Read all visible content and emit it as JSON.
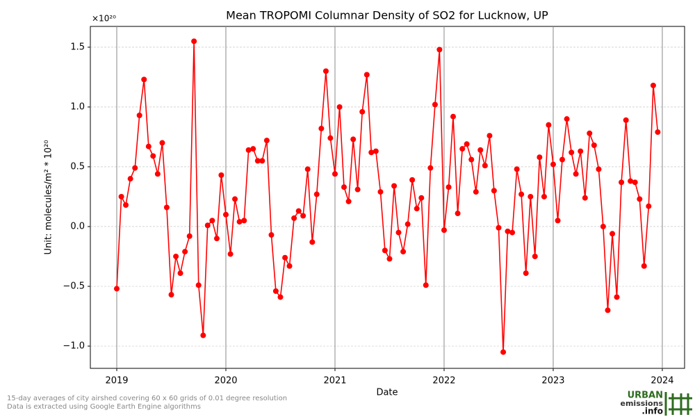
{
  "chart_data": {
    "type": "line",
    "title": "Mean TROPOMI Columnar Density of SO2 for Lucknow, UP",
    "x_label": "Date",
    "y_label": "Unit: molecules/m² * 10²⁰",
    "y_multiplier": "×10²⁰",
    "footnotes": [
      "15-day averages of city airshed covering 60 x 60 grids of 0.01 degree resolution",
      "Data is extracted using Google Earth Engine algorithms"
    ],
    "logo": [
      "URBAN",
      "emissions",
      ".info"
    ],
    "x": [
      2019,
      2019.042,
      2019.083,
      2019.125,
      2019.167,
      2019.208,
      2019.25,
      2019.292,
      2019.333,
      2019.375,
      2019.417,
      2019.458,
      2019.5,
      2019.542,
      2019.583,
      2019.625,
      2019.667,
      2019.708,
      2019.75,
      2019.792,
      2019.833,
      2019.875,
      2019.917,
      2019.958,
      2020,
      2020.042,
      2020.083,
      2020.125,
      2020.167,
      2020.208,
      2020.25,
      2020.292,
      2020.333,
      2020.375,
      2020.417,
      2020.458,
      2020.5,
      2020.542,
      2020.583,
      2020.625,
      2020.667,
      2020.708,
      2020.75,
      2020.792,
      2020.833,
      2020.875,
      2020.917,
      2020.958,
      2021,
      2021.042,
      2021.083,
      2021.125,
      2021.167,
      2021.208,
      2021.25,
      2021.292,
      2021.333,
      2021.375,
      2021.417,
      2021.458,
      2021.5,
      2021.542,
      2021.583,
      2021.625,
      2021.667,
      2021.708,
      2021.75,
      2021.792,
      2021.833,
      2021.875,
      2021.917,
      2021.958,
      2022,
      2022.042,
      2022.083,
      2022.125,
      2022.167,
      2022.208,
      2022.25,
      2022.292,
      2022.333,
      2022.375,
      2022.417,
      2022.458,
      2022.5,
      2022.542,
      2022.583,
      2022.625,
      2022.667,
      2022.708,
      2022.75,
      2022.792,
      2022.833,
      2022.875,
      2022.917,
      2022.958,
      2023,
      2023.042,
      2023.083,
      2023.125,
      2023.167,
      2023.208,
      2023.25,
      2023.292,
      2023.333,
      2023.375,
      2023.417,
      2023.458,
      2023.5,
      2023.542,
      2023.583,
      2023.625,
      2023.667,
      2023.708,
      2023.75,
      2023.792,
      2023.833,
      2023.875,
      2023.917,
      2023.958
    ],
    "series": [
      {
        "color": "#ff0000",
        "values": [
          -0.52,
          0.25,
          0.18,
          0.4,
          0.49,
          0.93,
          1.23,
          0.67,
          0.59,
          0.44,
          0.7,
          0.16,
          -0.57,
          -0.25,
          -0.39,
          -0.21,
          -0.08,
          1.55,
          -0.49,
          -0.91,
          0.01,
          0.05,
          -0.1,
          0.43,
          0.1,
          -0.23,
          0.23,
          0.04,
          0.05,
          0.64,
          0.65,
          0.55,
          0.55,
          0.72,
          -0.07,
          -0.54,
          -0.59,
          -0.26,
          -0.33,
          0.07,
          0.13,
          0.09,
          0.48,
          -0.13,
          0.27,
          0.82,
          1.3,
          0.74,
          0.44,
          1.0,
          0.33,
          0.21,
          0.73,
          0.31,
          0.96,
          1.27,
          0.62,
          0.63,
          0.29,
          -0.2,
          -0.27,
          0.34,
          -0.05,
          -0.21,
          0.02,
          0.39,
          0.15,
          0.24,
          -0.49,
          0.49,
          1.02,
          1.48,
          -0.03,
          0.33,
          0.92,
          0.11,
          0.65,
          0.69,
          0.56,
          0.29,
          0.64,
          0.51,
          0.76,
          0.3,
          -0.01,
          -1.05,
          -0.04,
          -0.05,
          0.48,
          0.27,
          -0.39,
          0.25,
          -0.25,
          0.58,
          0.25,
          0.85,
          0.52,
          0.05,
          0.56,
          0.9,
          0.62,
          0.44,
          0.63,
          0.24,
          0.78,
          0.68,
          0.48,
          0.0,
          -0.7,
          -0.06,
          -0.59,
          0.37,
          0.89,
          0.38,
          0.37,
          0.23,
          -0.33,
          0.17,
          1.18,
          0.79
        ]
      }
    ],
    "xlim": [
      2018.758,
      2024.204
    ],
    "ylim": [
      -1.186,
      1.674
    ],
    "xticks": [
      2019,
      2020,
      2021,
      2022,
      2023,
      2024
    ],
    "yticks": [
      {
        "value": -1.0,
        "label": "−1.0"
      },
      {
        "value": -0.5,
        "label": "−0.5"
      },
      {
        "value": 0,
        "label": "0.0"
      },
      {
        "value": 0.5,
        "label": "0.5"
      },
      {
        "value": 1.0,
        "label": "1.0"
      },
      {
        "value": 1.5,
        "label": "1.5"
      }
    ],
    "grid": true
  }
}
